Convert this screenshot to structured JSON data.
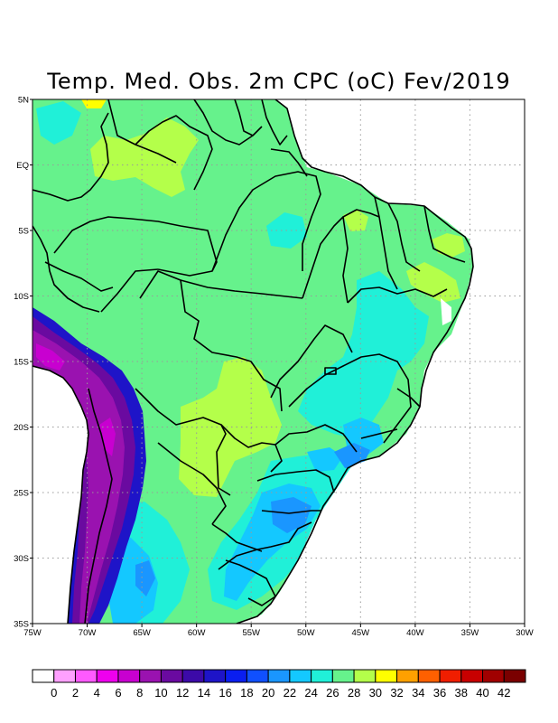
{
  "title": "Temp. Med. Obs. 2m CPC (oC) Fev/2019",
  "map": {
    "lon_range": [
      -75,
      -30
    ],
    "lat_range": [
      -35,
      5
    ],
    "x_ticks": [
      {
        "lon": -75,
        "label": "75W"
      },
      {
        "lon": -70,
        "label": "70W"
      },
      {
        "lon": -65,
        "label": "65W"
      },
      {
        "lon": -60,
        "label": "60W"
      },
      {
        "lon": -55,
        "label": "55W"
      },
      {
        "lon": -50,
        "label": "50W"
      },
      {
        "lon": -45,
        "label": "45W"
      },
      {
        "lon": -40,
        "label": "40W"
      },
      {
        "lon": -35,
        "label": "35W"
      },
      {
        "lon": -30,
        "label": "30W"
      }
    ],
    "y_ticks": [
      {
        "lat": 5,
        "label": "5N"
      },
      {
        "lat": 0,
        "label": "EQ"
      },
      {
        "lat": -5,
        "label": "5S"
      },
      {
        "lat": -10,
        "label": "10S"
      },
      {
        "lat": -15,
        "label": "15S"
      },
      {
        "lat": -20,
        "label": "20S"
      },
      {
        "lat": -25,
        "label": "25S"
      },
      {
        "lat": -30,
        "label": "30S"
      },
      {
        "lat": -35,
        "label": "35S"
      }
    ]
  },
  "colorbar": {
    "colors": [
      "#ffffff",
      "#ffa0ff",
      "#ff5aff",
      "#ee00ee",
      "#c800d0",
      "#9a12b0",
      "#6a0aa0",
      "#3c0aa8",
      "#1e14c8",
      "#0a1ef0",
      "#1050ff",
      "#1a96ff",
      "#14c8ff",
      "#20f0d8",
      "#66f28c",
      "#b4ff4a",
      "#ffff00",
      "#ffa000",
      "#ff6000",
      "#f01e00",
      "#c80000",
      "#a00000",
      "#7a0000"
    ],
    "labels": [
      "0",
      "2",
      "4",
      "6",
      "8",
      "10",
      "12",
      "14",
      "16",
      "18",
      "20",
      "22",
      "24",
      "26",
      "28",
      "30",
      "32",
      "34",
      "36",
      "38",
      "40",
      "42"
    ]
  }
}
